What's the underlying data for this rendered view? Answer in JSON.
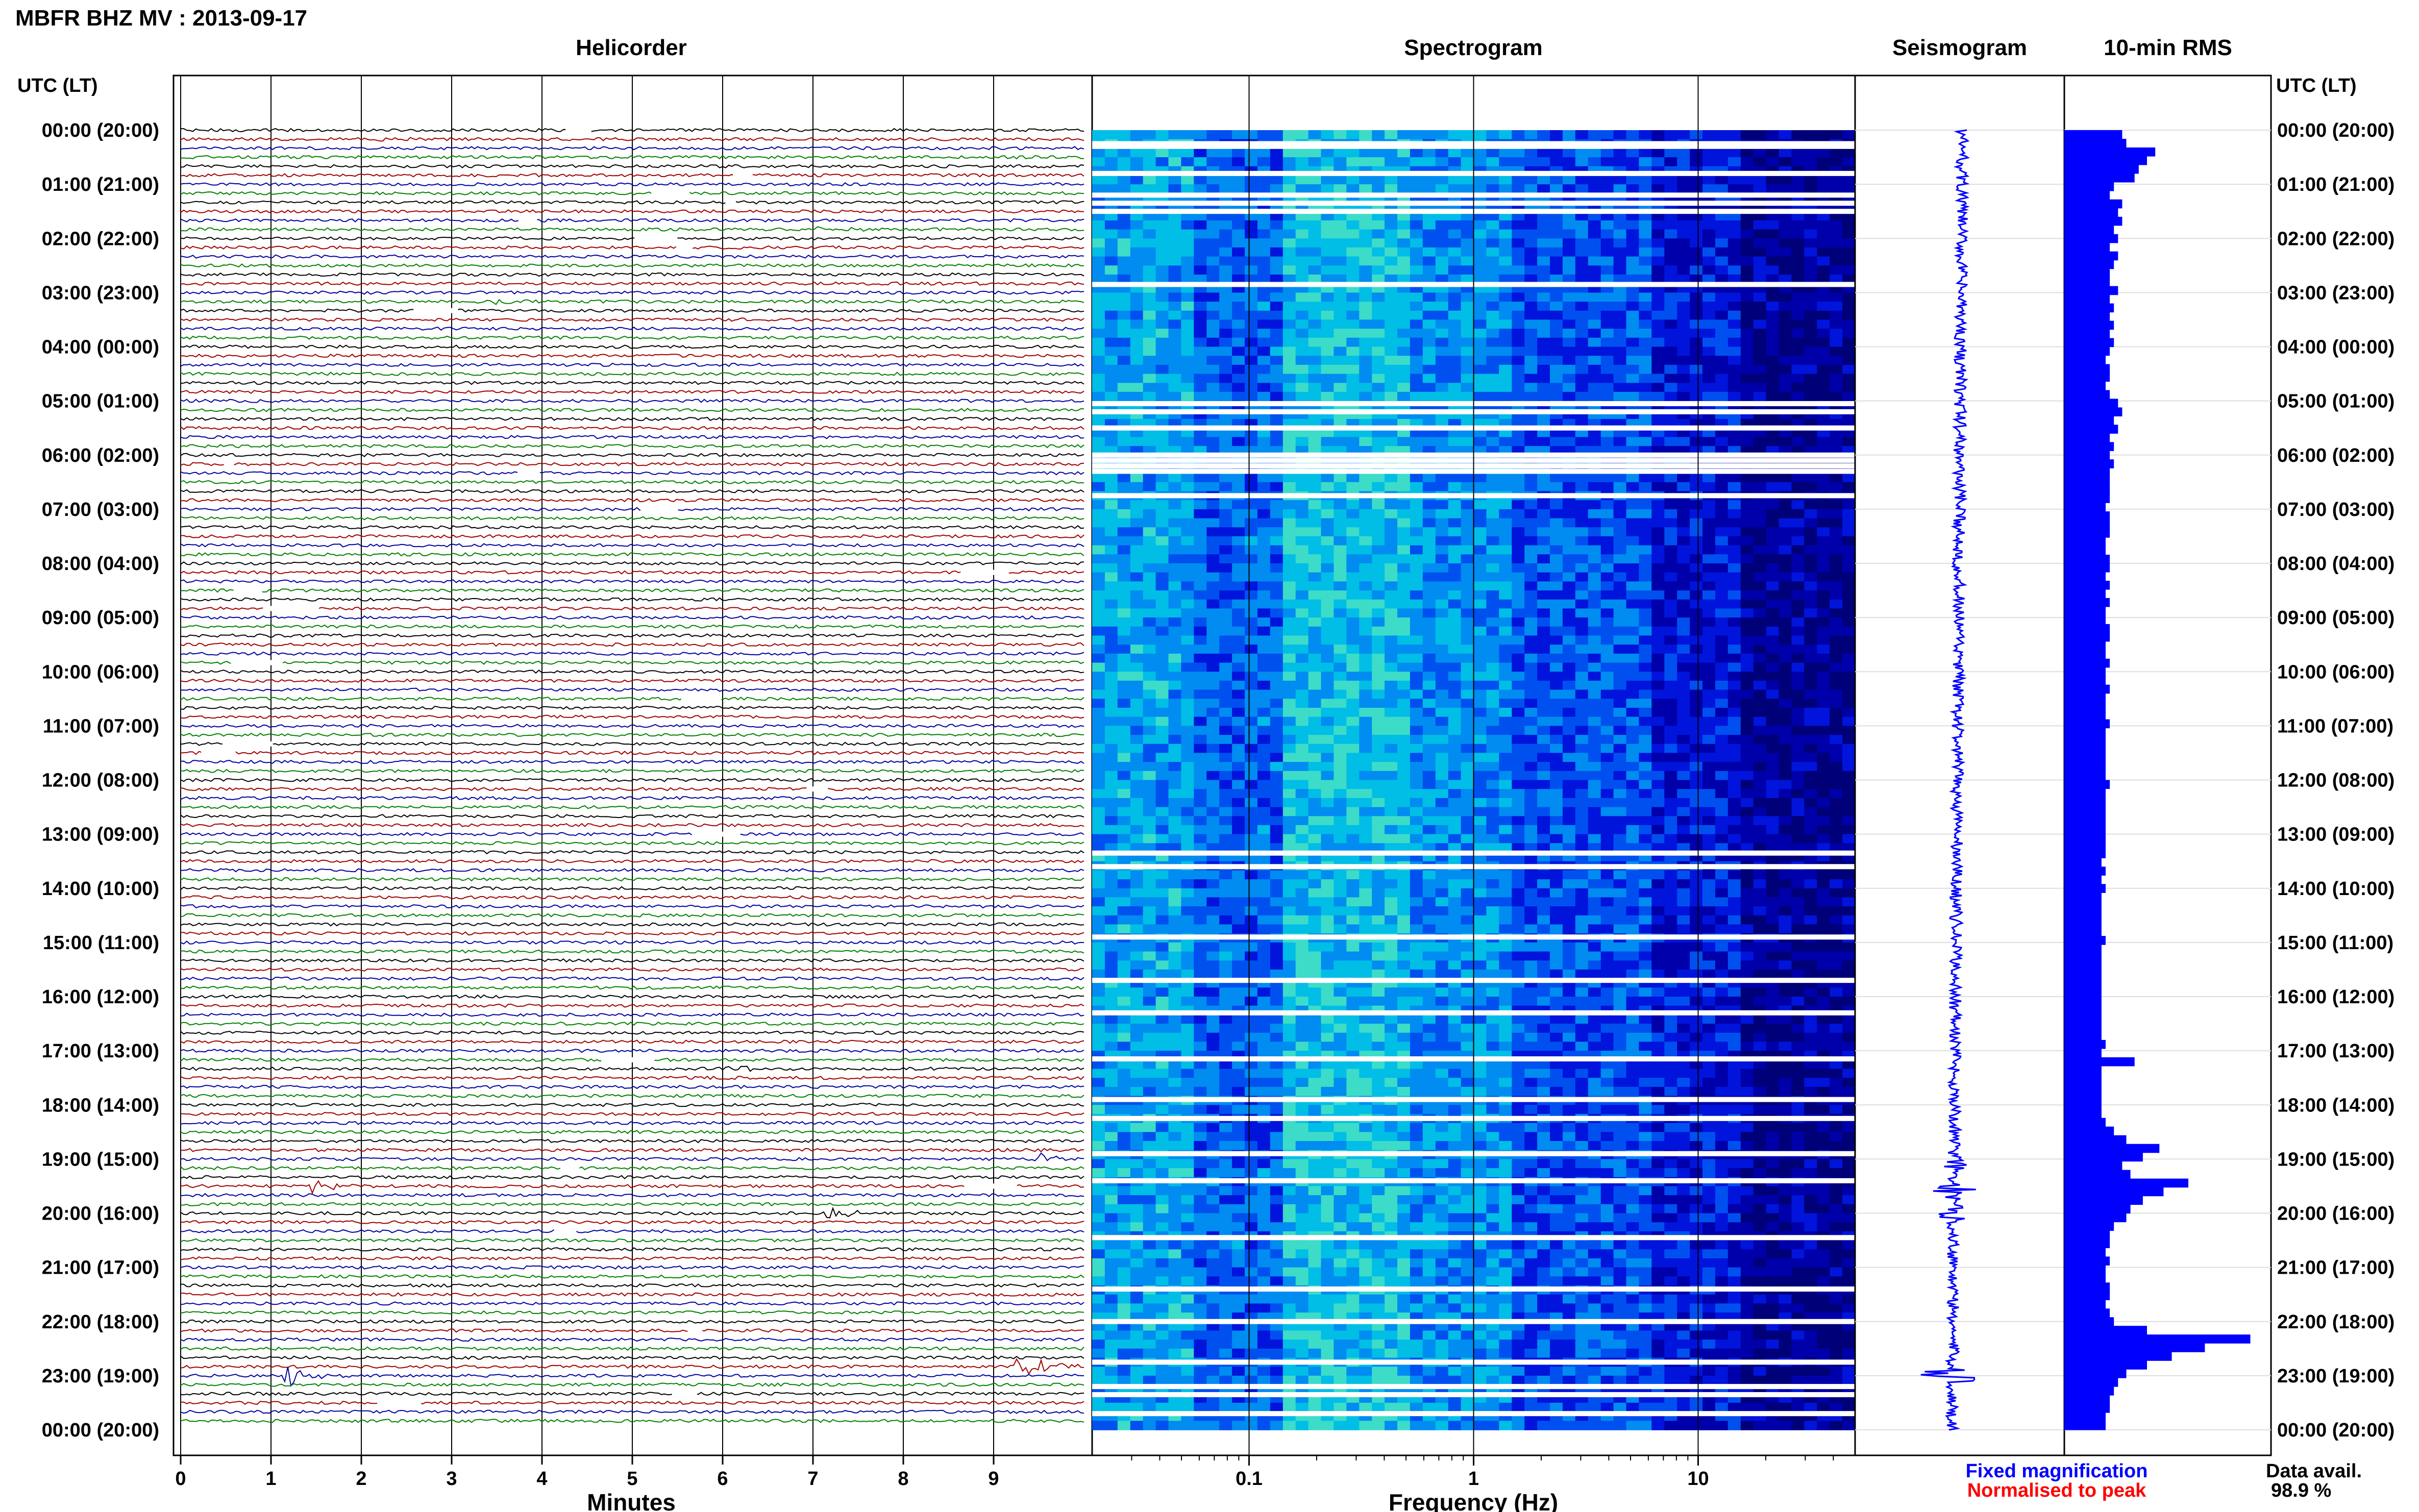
{
  "header": {
    "station_title": "MBFR BHZ MV : 2013-09-17",
    "panel_helicorder": "Helicorder",
    "panel_spectrogram": "Spectrogram",
    "panel_seismogram": "Seismogram",
    "panel_rms": "10-min RMS",
    "left_axis_label": "UTC (LT)",
    "right_axis_label": "UTC (LT)"
  },
  "chart_data": {
    "type": "heatmap",
    "time_labels": [
      "00:00 (20:00)",
      "01:00 (21:00)",
      "02:00 (22:00)",
      "03:00 (23:00)",
      "04:00 (00:00)",
      "05:00 (01:00)",
      "06:00 (02:00)",
      "07:00 (03:00)",
      "08:00 (04:00)",
      "09:00 (05:00)",
      "10:00 (06:00)",
      "11:00 (07:00)",
      "12:00 (08:00)",
      "13:00 (09:00)",
      "14:00 (10:00)",
      "15:00 (11:00)",
      "16:00 (12:00)",
      "17:00 (13:00)",
      "18:00 (14:00)",
      "19:00 (15:00)",
      "20:00 (16:00)",
      "21:00 (17:00)",
      "22:00 (18:00)",
      "23:00 (19:00)",
      "00:00 (20:00)"
    ],
    "helicorder": {
      "xlabel": "Minutes",
      "xticks": [
        "0",
        "1",
        "2",
        "3",
        "4",
        "5",
        "6",
        "7",
        "8",
        "9"
      ],
      "xlim": [
        0,
        10
      ],
      "trace_colors": [
        "#000000",
        "#a00000",
        "#0000a0",
        "#008000"
      ],
      "events": [
        {
          "hour": 0.1,
          "minute": 2.2,
          "amp": 1.2
        },
        {
          "hour": 1.9,
          "minute": 7.05,
          "amp": 1.6
        },
        {
          "hour": 3.15,
          "minute": 3.5,
          "amp": 1.2
        },
        {
          "hour": 17.3,
          "minute": 6.1,
          "amp": 1.4
        },
        {
          "hour": 19.0,
          "minute": 9.5,
          "amp": 1.8
        },
        {
          "hour": 19.5,
          "minute": 1.5,
          "amp": 2.2
        },
        {
          "hour": 20.0,
          "minute": 7.2,
          "amp": 1.8
        },
        {
          "hour": 22.9,
          "minute": 9.3,
          "amp": 4.5
        },
        {
          "hour": 23.05,
          "minute": 1.2,
          "amp": 3.0
        }
      ]
    },
    "spectrogram": {
      "xlabel": "Frequency (Hz)",
      "xscale": "log",
      "xlim": [
        0.02,
        50
      ],
      "xticks": [
        {
          "value": 0.1,
          "label": "0.1"
        },
        {
          "value": 1,
          "label": "1"
        },
        {
          "value": 10,
          "label": "10"
        }
      ],
      "gaps_hours": [
        0.25,
        0.3,
        0.8,
        1.2,
        1.35,
        1.5,
        2.85,
        5.05,
        5.2,
        5.5,
        6.0,
        6.1,
        6.2,
        6.3,
        6.75,
        13.35,
        13.6,
        14.9,
        15.7,
        16.3,
        17.15,
        17.9,
        18.25,
        18.9,
        19.4,
        20.45,
        21.4,
        22.0,
        22.75,
        23.2,
        23.35,
        23.7
      ]
    },
    "seismogram": {
      "bursts": [
        {
          "hour": 19.1,
          "amp": 0.4
        },
        {
          "hour": 19.6,
          "amp": 0.7
        },
        {
          "hour": 20.0,
          "amp": 0.6
        },
        {
          "hour": 23.0,
          "amp": 1.6
        }
      ]
    },
    "rms": {
      "values": [
        28,
        30,
        44,
        40,
        36,
        34,
        24,
        22,
        28,
        26,
        28,
        24,
        26,
        22,
        26,
        24,
        22,
        22,
        26,
        22,
        24,
        22,
        24,
        22,
        24,
        22,
        20,
        22,
        22,
        20,
        22,
        26,
        28,
        24,
        26,
        22,
        24,
        22,
        24,
        22,
        22,
        22,
        22,
        20,
        22,
        22,
        22,
        20,
        20,
        22,
        22,
        20,
        22,
        20,
        22,
        20,
        20,
        22,
        22,
        20,
        20,
        22,
        20,
        20,
        22,
        20,
        20,
        20,
        22,
        20,
        20,
        20,
        20,
        20,
        20,
        22,
        20,
        20,
        20,
        20,
        20,
        20,
        20,
        20,
        18,
        20,
        18,
        20,
        18,
        18,
        18,
        18,
        18,
        20,
        18,
        18,
        18,
        18,
        18,
        18,
        18,
        18,
        18,
        18,
        18,
        20,
        18,
        34,
        18,
        18,
        18,
        18,
        18,
        18,
        20,
        24,
        30,
        46,
        38,
        28,
        32,
        60,
        48,
        38,
        32,
        30,
        24,
        22,
        22,
        20,
        22,
        20,
        20,
        22,
        22,
        20,
        22,
        24,
        40,
        90,
        68,
        52,
        40,
        30,
        26,
        24,
        22,
        22,
        20,
        20
      ],
      "max": 100
    },
    "legend": {
      "fixed": "Fixed magnification",
      "normalised": "Normalised to peak",
      "fixed_color": "#0000ff",
      "normalised_color": "#ff0000"
    },
    "availability": {
      "label": "Data avail.",
      "value": "98.9 %"
    }
  }
}
